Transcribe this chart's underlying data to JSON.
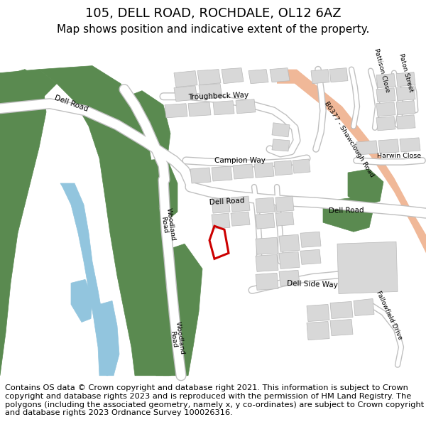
{
  "title": "105, DELL ROAD, ROCHDALE, OL12 6AZ",
  "subtitle": "Map shows position and indicative extent of the property.",
  "footer": "Contains OS data © Crown copyright and database right 2021. This information is subject to Crown copyright and database rights 2023 and is reproduced with the permission of HM Land Registry. The polygons (including the associated geometry, namely x, y co-ordinates) are subject to Crown copyright and database rights 2023 Ordnance Survey 100026316.",
  "title_fontsize": 13,
  "subtitle_fontsize": 11,
  "footer_fontsize": 8.2,
  "map_bg": "#f0f0f0",
  "green": "#5a8a50",
  "blue": "#92c5de",
  "salmon": "#f0b898",
  "white_road": "#ffffff",
  "gray_stroke": "#c0c0c0",
  "building_fill": "#d8d8d8",
  "building_edge": "#b8b8b8",
  "red": "#cc0000"
}
